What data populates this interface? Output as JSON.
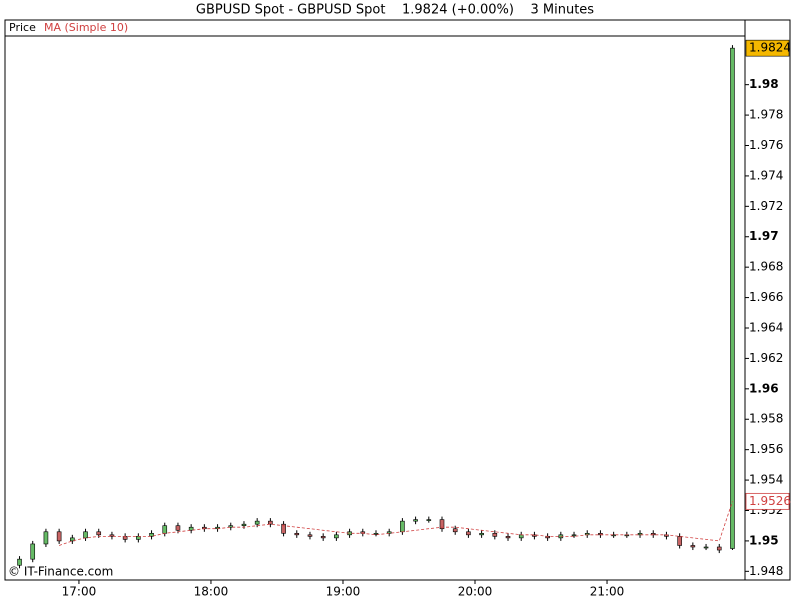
{
  "chart_data": {
    "type": "candlestick",
    "title": "GBPUSD Spot - GBPUSD Spot    1.9824 (+0.00%)    3 Minutes",
    "copyright": "© IT-Finance.com",
    "x": [
      1,
      3,
      5,
      7,
      9,
      11,
      13,
      15,
      17,
      19,
      21,
      23,
      25,
      27,
      29,
      31,
      33,
      35,
      37,
      39,
      41,
      43,
      45,
      47,
      49,
      51,
      53,
      55,
      57,
      59,
      61,
      63,
      65,
      67,
      69,
      71,
      73,
      75,
      77,
      79,
      81,
      83,
      85,
      87,
      89,
      91,
      93,
      95,
      97,
      99,
      101,
      103,
      105,
      107,
      109
    ],
    "xlim": [
      -1.2,
      110.9
    ],
    "xticks": [
      {
        "value": 10,
        "label": "17:00"
      },
      {
        "value": 30,
        "label": "18:00"
      },
      {
        "value": 50,
        "label": "19:00"
      },
      {
        "value": 70,
        "label": "20:00"
      },
      {
        "value": 90,
        "label": "21:00"
      }
    ],
    "ylim": [
      1.94743,
      1.9832
    ],
    "yticks": [
      1.948,
      1.95,
      1.952,
      1.954,
      1.956,
      1.958,
      1.96,
      1.962,
      1.964,
      1.966,
      1.968,
      1.97,
      1.972,
      1.974,
      1.976,
      1.978,
      1.98
    ],
    "series": [
      {
        "name": "Price",
        "up_color": "#66bb66",
        "down_color": "#c86464",
        "open": [
          1.9484,
          1.9488,
          1.9498,
          1.9506,
          1.95,
          1.9502,
          1.9506,
          1.9504,
          1.9503,
          1.9501,
          1.9503,
          1.9505,
          1.951,
          1.9507,
          1.9509,
          1.9508,
          1.9509,
          1.951,
          1.9511,
          1.9513,
          1.9511,
          1.9505,
          1.9504,
          1.9503,
          1.9502,
          1.9504,
          1.9506,
          1.9505,
          1.9505,
          1.9506,
          1.9513,
          1.9514,
          1.9514,
          1.9508,
          1.9506,
          1.9504,
          1.9505,
          1.9503,
          1.9502,
          1.9504,
          1.9503,
          1.9502,
          1.9504,
          1.9504,
          1.9505,
          1.9504,
          1.9504,
          1.9504,
          1.9505,
          1.9504,
          1.9503,
          1.9497,
          1.9496,
          1.9496,
          1.9495
        ],
        "high": [
          1.949,
          1.95,
          1.9508,
          1.9508,
          1.9504,
          1.9508,
          1.9508,
          1.9506,
          1.9505,
          1.9505,
          1.9507,
          1.9512,
          1.9512,
          1.9511,
          1.9511,
          1.9511,
          1.9512,
          1.9513,
          1.9515,
          1.9515,
          1.9513,
          1.9507,
          1.9506,
          1.9505,
          1.9506,
          1.9508,
          1.9508,
          1.9507,
          1.9508,
          1.9515,
          1.9516,
          1.9516,
          1.9516,
          1.951,
          1.9508,
          1.9507,
          1.9507,
          1.9505,
          1.9506,
          1.9506,
          1.9505,
          1.9506,
          1.9506,
          1.9507,
          1.9507,
          1.9506,
          1.9506,
          1.9507,
          1.9507,
          1.9506,
          1.9505,
          1.9499,
          1.9498,
          1.9498,
          1.9826
        ],
        "low": [
          1.9482,
          1.9486,
          1.9496,
          1.9498,
          1.9498,
          1.95,
          1.9502,
          1.9501,
          1.9499,
          1.9499,
          1.9501,
          1.9503,
          1.9505,
          1.9505,
          1.9506,
          1.9506,
          1.9507,
          1.9508,
          1.9509,
          1.9509,
          1.9503,
          1.9502,
          1.9501,
          1.95,
          1.95,
          1.9502,
          1.9503,
          1.9503,
          1.9503,
          1.9504,
          1.9511,
          1.9512,
          1.9506,
          1.9504,
          1.9502,
          1.9502,
          1.9501,
          1.95,
          1.95,
          1.9501,
          1.95,
          1.95,
          1.9502,
          1.9502,
          1.9502,
          1.9502,
          1.9502,
          1.9502,
          1.9502,
          1.9501,
          1.9495,
          1.9494,
          1.9494,
          1.9492,
          1.9494
        ],
        "close": [
          1.9488,
          1.9498,
          1.9506,
          1.95,
          1.9502,
          1.9506,
          1.9504,
          1.9503,
          1.9501,
          1.9503,
          1.9505,
          1.951,
          1.9507,
          1.9509,
          1.9508,
          1.9509,
          1.951,
          1.9511,
          1.9513,
          1.9511,
          1.9505,
          1.9504,
          1.9503,
          1.9502,
          1.9504,
          1.9506,
          1.9505,
          1.9505,
          1.9506,
          1.9513,
          1.9514,
          1.9514,
          1.9508,
          1.9506,
          1.9504,
          1.9505,
          1.9503,
          1.9502,
          1.9504,
          1.9503,
          1.9502,
          1.9504,
          1.9504,
          1.9505,
          1.9504,
          1.9504,
          1.9504,
          1.9505,
          1.9504,
          1.9503,
          1.9497,
          1.9496,
          1.9496,
          1.9494,
          1.9824
        ]
      },
      {
        "name": "MA (Simple 10)",
        "color": "#d04040",
        "values": [
          null,
          null,
          null,
          1.9497,
          1.95,
          1.9502,
          1.9503,
          1.9503,
          1.9503,
          1.9503,
          1.9503,
          1.9505,
          1.9506,
          1.9507,
          1.9508,
          1.9508,
          1.9509,
          1.9509,
          1.951,
          1.9511,
          1.951,
          1.9509,
          1.9508,
          1.9507,
          1.9506,
          1.9505,
          1.9505,
          1.9504,
          1.9505,
          1.9506,
          1.9507,
          1.9508,
          1.9509,
          1.9509,
          1.9508,
          1.9507,
          1.9506,
          1.9505,
          1.9504,
          1.9504,
          1.9503,
          1.9503,
          1.9503,
          1.9504,
          1.9504,
          1.9504,
          1.9504,
          1.9504,
          1.9504,
          1.9504,
          1.9503,
          1.9502,
          1.9501,
          1.95,
          1.9526
        ]
      }
    ],
    "last_price_color": "#f5b800"
  }
}
